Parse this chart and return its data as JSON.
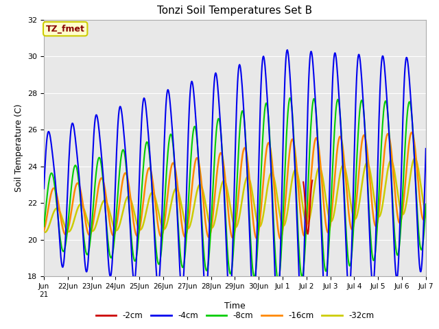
{
  "title": "Tonzi Soil Temperatures Set B",
  "xlabel": "Time",
  "ylabel": "Soil Temperature (C)",
  "ylim": [
    18,
    32
  ],
  "xlim": [
    0,
    16
  ],
  "tick_labels": [
    "Jun\n21",
    "22Jun",
    "23Jun",
    "24Jun",
    "25Jun",
    "26Jun",
    "27Jun",
    "28Jun",
    "29Jun",
    "30Jun",
    "Jul 1",
    "Jul 2",
    "Jul 3",
    "Jul 4",
    "Jul 5",
    "Jul 6",
    "Jul 7"
  ],
  "grid_color": "#cccccc",
  "bg_color": "#e8e8e8",
  "legend_items": [
    "-2cm",
    "-4cm",
    "-8cm",
    "-16cm",
    "-32cm"
  ],
  "legend_colors": [
    "#cc0000",
    "#0000ee",
    "#00cc00",
    "#ff8800",
    "#cccc00"
  ],
  "annotation_text": "TZ_fmet",
  "annotation_bg": "#ffffcc",
  "annotation_border": "#cccc00",
  "annotation_text_color": "#880000",
  "series_colors": [
    "#cc0000",
    "#0000ee",
    "#00cc00",
    "#ff8800",
    "#cccc00"
  ],
  "series_linewidths": [
    1.5,
    1.5,
    1.5,
    1.8,
    1.8
  ]
}
